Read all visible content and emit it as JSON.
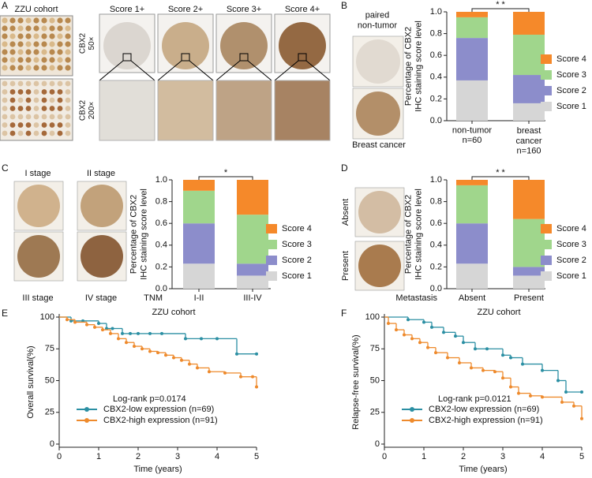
{
  "figure": {
    "panel_labels": [
      "A",
      "B",
      "C",
      "D",
      "E",
      "F"
    ],
    "a": {
      "cohort": "ZZU cohort",
      "scores": [
        "Score 1+",
        "Score 2+",
        "Score 3+",
        "Score 4+"
      ],
      "magnifications": [
        "CBX2\n50×",
        "CBX2\n200×"
      ]
    },
    "b": {
      "top": "paired\nnon-tumor",
      "bottom": "Breast cancer"
    },
    "c": {
      "stages": [
        "I stage",
        "II stage",
        "III stage",
        "IV stage"
      ]
    },
    "d": {
      "groups": [
        "Absent",
        "Present"
      ]
    }
  },
  "chart_data": [
    {
      "type": "stacked_bar",
      "y_label": "Percentage of CBX2\nIHC staining score level",
      "categories": [
        "non-tumor\nn=60",
        "breast\ncancer\nn=160"
      ],
      "annotation": "* *",
      "ylim": [
        0,
        1
      ],
      "yticks": [
        {
          "value": 0,
          "label": "0.0"
        },
        0.2,
        0.4,
        0.6,
        0.8,
        {
          "value": 1,
          "label": "1.0"
        }
      ],
      "series": [
        {
          "name": "Score 4",
          "color": "#f5892a",
          "values": [
            0.05,
            0.21
          ]
        },
        {
          "name": "Score 3",
          "color": "#a0d68c",
          "values": [
            0.19,
            0.37
          ]
        },
        {
          "name": "Score 2",
          "color": "#8c8dcb",
          "values": [
            0.39,
            0.26
          ]
        },
        {
          "name": "Score 1",
          "color": "#d6d6d6",
          "values": [
            0.37,
            0.16
          ]
        }
      ]
    },
    {
      "type": "stacked_bar",
      "y_label": "Percentage of CBX2\nIHC staining score level",
      "x_label": "TNM",
      "categories": [
        "I-II",
        "III-IV"
      ],
      "annotation": "*",
      "ylim": [
        0,
        1
      ],
      "yticks": [
        {
          "value": 0,
          "label": "0.0"
        },
        0.2,
        0.4,
        0.6,
        0.8,
        {
          "value": 1,
          "label": "1.0"
        }
      ],
      "series": [
        {
          "name": "Score 4",
          "color": "#f5892a",
          "values": [
            0.1,
            0.32
          ]
        },
        {
          "name": "Score 3",
          "color": "#a0d68c",
          "values": [
            0.3,
            0.45
          ]
        },
        {
          "name": "Score 2",
          "color": "#8c8dcb",
          "values": [
            0.37,
            0.11
          ]
        },
        {
          "name": "Score 1",
          "color": "#d6d6d6",
          "values": [
            0.23,
            0.12
          ]
        }
      ]
    },
    {
      "type": "stacked_bar",
      "y_label": "Percentage of CBX2\nIHC staining score level",
      "x_label": "Metastasis",
      "categories": [
        "Absent",
        "Present"
      ],
      "annotation": "* *",
      "ylim": [
        0,
        1
      ],
      "yticks": [
        {
          "value": 0,
          "label": "0.0"
        },
        0.2,
        0.4,
        0.6,
        0.8,
        {
          "value": 1,
          "label": "1.0"
        }
      ],
      "series": [
        {
          "name": "Score 4",
          "color": "#f5892a",
          "values": [
            0.05,
            0.36
          ]
        },
        {
          "name": "Score 3",
          "color": "#a0d68c",
          "values": [
            0.35,
            0.44
          ]
        },
        {
          "name": "Score 2",
          "color": "#8c8dcb",
          "values": [
            0.37,
            0.08
          ]
        },
        {
          "name": "Score 1",
          "color": "#d6d6d6",
          "values": [
            0.23,
            0.12
          ]
        }
      ]
    },
    {
      "type": "km",
      "title": "ZZU cohort",
      "x_label": "Time (years)",
      "y_label": "Overall survival(%)",
      "annotation": "Log-rank p=0.0174",
      "xlim": [
        0,
        5
      ],
      "xticks": [
        0,
        1,
        2,
        3,
        4,
        5
      ],
      "ylim": [
        0,
        100
      ],
      "yticks": [
        0,
        25,
        50,
        75,
        100
      ],
      "series": [
        {
          "name": "CBX2-low  expression (n=69)",
          "color": "#2b8fa3",
          "x": [
            0,
            0.3,
            0.6,
            1.0,
            1.2,
            1.35,
            1.6,
            1.8,
            2.0,
            2.3,
            2.6,
            3.2,
            3.6,
            4.0,
            4.5,
            5.0
          ],
          "values": [
            100,
            97,
            97,
            95,
            91,
            91,
            87,
            87,
            87,
            87,
            87,
            83,
            83,
            83,
            71,
            71
          ]
        },
        {
          "name": "CBX2-high expression (n=91)",
          "color": "#ee8a2c",
          "x": [
            0,
            0.2,
            0.4,
            0.7,
            0.9,
            1.1,
            1.3,
            1.5,
            1.7,
            1.9,
            2.1,
            2.3,
            2.5,
            2.7,
            2.9,
            3.1,
            3.3,
            3.5,
            3.8,
            4.2,
            4.6,
            4.9,
            5.0
          ],
          "values": [
            100,
            98,
            96,
            94,
            92,
            90,
            87,
            83,
            80,
            77,
            75,
            73,
            72,
            70,
            68,
            66,
            63,
            60,
            57,
            56,
            53,
            53,
            45
          ]
        }
      ]
    },
    {
      "type": "km",
      "title": "ZZU cohort",
      "x_label": "Time (years)",
      "y_label": "Relapse-free survival(%)",
      "annotation": "Log-rank p=0.0121",
      "xlim": [
        0,
        5
      ],
      "xticks": [
        0,
        1,
        2,
        3,
        4,
        5
      ],
      "ylim": [
        0,
        100
      ],
      "yticks": [
        0,
        25,
        50,
        75,
        100
      ],
      "series": [
        {
          "name": "CBX2-low  expression (n=69)",
          "color": "#2b8fa3",
          "x": [
            0,
            0.6,
            1.0,
            1.2,
            1.5,
            1.8,
            2.0,
            2.3,
            2.6,
            3.0,
            3.2,
            3.5,
            4.0,
            4.4,
            4.6,
            5.0
          ],
          "values": [
            100,
            98,
            96,
            92,
            88,
            85,
            80,
            75,
            75,
            70,
            68,
            63,
            58,
            50,
            41,
            41
          ]
        },
        {
          "name": "CBX2-high expression (n=91)",
          "color": "#ee8a2c",
          "x": [
            0,
            0.1,
            0.3,
            0.5,
            0.7,
            0.9,
            1.1,
            1.3,
            1.6,
            1.9,
            2.2,
            2.5,
            2.8,
            3.0,
            3.2,
            3.4,
            3.7,
            4.0,
            4.5,
            4.8,
            5.0
          ],
          "values": [
            100,
            95,
            90,
            86,
            83,
            80,
            76,
            72,
            68,
            64,
            60,
            58,
            57,
            52,
            45,
            40,
            38,
            37,
            33,
            30,
            20
          ]
        }
      ]
    }
  ]
}
